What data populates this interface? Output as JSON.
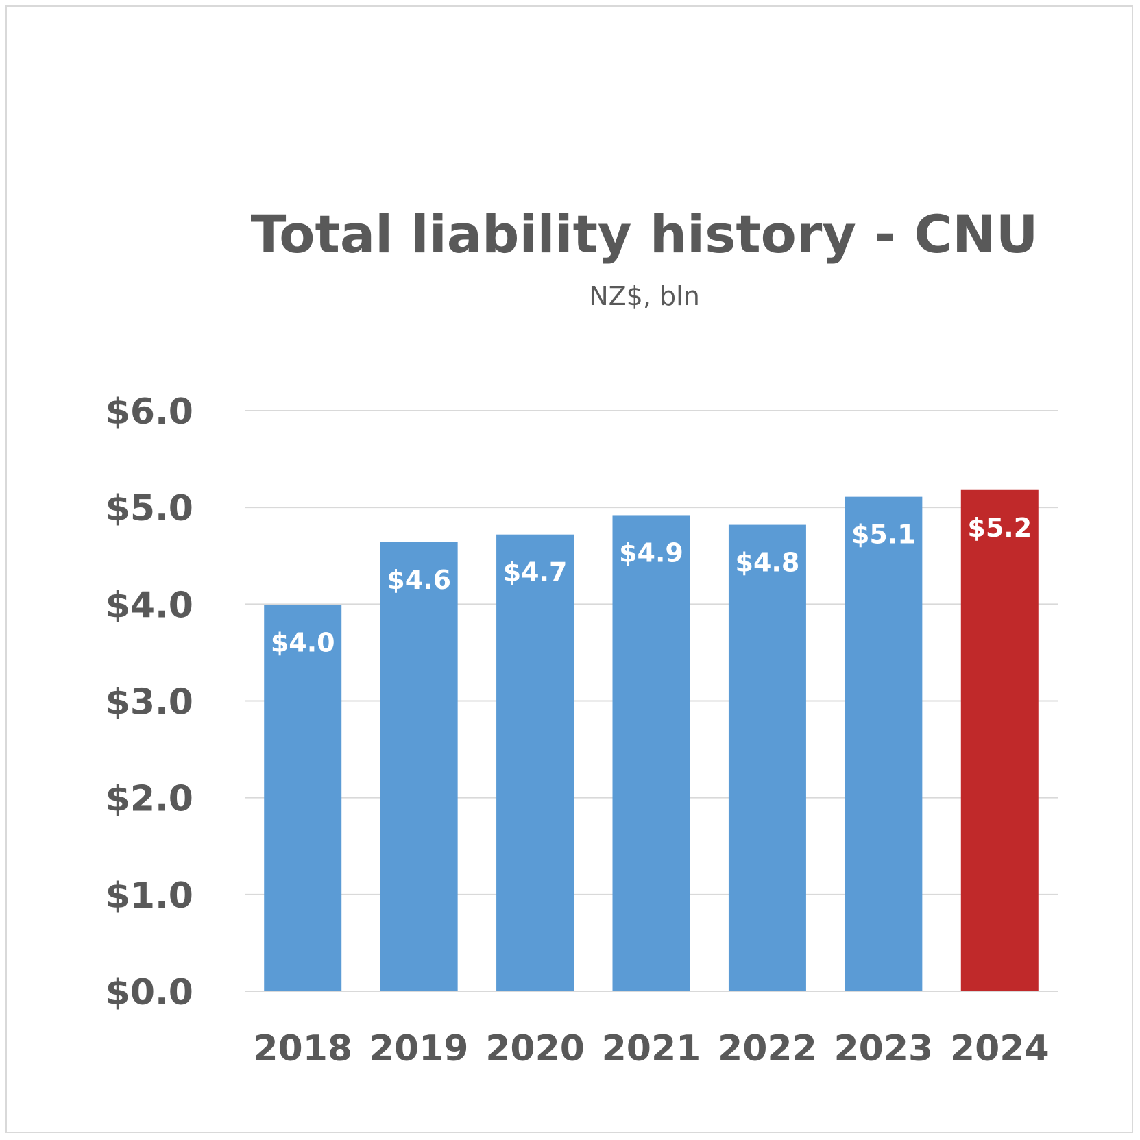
{
  "chart_data": {
    "type": "bar",
    "title": "Total liability history - CNU",
    "subtitle": "NZ$, bln",
    "xlabel": "",
    "ylabel": "",
    "categories": [
      "2018",
      "2019",
      "2020",
      "2021",
      "2022",
      "2023",
      "2024"
    ],
    "values": [
      3.99,
      4.64,
      4.72,
      4.92,
      4.82,
      5.11,
      5.18
    ],
    "data_labels": [
      "$4.0",
      "$4.6",
      "$4.7",
      "$4.9",
      "$4.8",
      "$5.1",
      "$5.2"
    ],
    "ylim": [
      0,
      6
    ],
    "yticks": [
      0,
      1,
      2,
      3,
      4,
      5,
      6
    ],
    "ytick_labels": [
      "$0.0",
      "$1.0",
      "$2.0",
      "$3.0",
      "$4.0",
      "$5.0",
      "$6.0"
    ],
    "grid": true,
    "legend": "none",
    "colors": {
      "default_bar": "#5b9bd5",
      "highlight_bar": "#c0292a",
      "highlight_index": 6
    }
  }
}
